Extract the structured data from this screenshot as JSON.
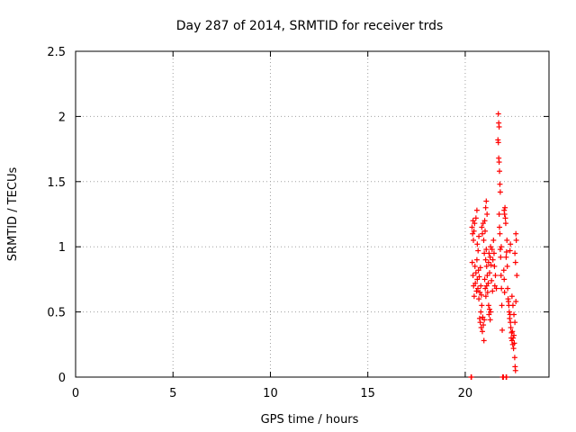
{
  "chart_data": {
    "type": "scatter",
    "title": "Day 287 of 2014, SRMTID for receiver trds",
    "xlabel": "GPS time / hours",
    "ylabel": "SRMTID / TECUs",
    "xlim": [
      0,
      24.3
    ],
    "ylim": [
      0,
      2.5
    ],
    "xticks": [
      0,
      5,
      10,
      15,
      20
    ],
    "yticks": [
      0,
      0.5,
      1,
      1.5,
      2,
      2.5
    ],
    "xtick_labels": [
      "0",
      "5",
      "10",
      "15",
      "20"
    ],
    "ytick_labels": [
      "0",
      "0.5",
      "1",
      "1.5",
      "2",
      "2.5"
    ],
    "grid": true,
    "marker": "+",
    "series": [
      {
        "name": "SRMTID",
        "color": "#ff0000",
        "points": [
          [
            20.3,
            0.0
          ],
          [
            20.32,
            0.0
          ],
          [
            20.35,
            1.15
          ],
          [
            20.38,
            1.1
          ],
          [
            20.4,
            1.2
          ],
          [
            20.42,
            1.05
          ],
          [
            20.45,
            1.12
          ],
          [
            20.48,
            1.18
          ],
          [
            20.36,
            0.88
          ],
          [
            20.4,
            0.78
          ],
          [
            20.43,
            0.7
          ],
          [
            20.46,
            0.62
          ],
          [
            20.5,
            0.85
          ],
          [
            20.52,
            0.72
          ],
          [
            20.55,
            0.8
          ],
          [
            20.58,
            0.66
          ],
          [
            20.6,
            0.9
          ],
          [
            20.62,
            0.75
          ],
          [
            20.65,
            0.68
          ],
          [
            20.68,
            0.82
          ],
          [
            20.7,
            0.6
          ],
          [
            20.72,
            0.77
          ],
          [
            20.75,
            0.65
          ],
          [
            20.78,
            0.84
          ],
          [
            20.8,
            0.7
          ],
          [
            20.83,
            0.63
          ],
          [
            20.55,
            1.22
          ],
          [
            20.6,
            1.28
          ],
          [
            20.62,
            1.02
          ],
          [
            20.66,
            0.97
          ],
          [
            20.7,
            1.08
          ],
          [
            20.74,
            0.45
          ],
          [
            20.77,
            0.42
          ],
          [
            20.8,
            0.5
          ],
          [
            20.82,
            0.38
          ],
          [
            20.85,
            0.55
          ],
          [
            20.88,
            0.35
          ],
          [
            20.9,
            0.46
          ],
          [
            20.93,
            0.4
          ],
          [
            20.96,
            0.28
          ],
          [
            20.98,
            0.44
          ],
          [
            20.85,
            1.15
          ],
          [
            20.88,
            1.1
          ],
          [
            20.92,
            1.18
          ],
          [
            20.95,
            1.05
          ],
          [
            20.98,
            0.95
          ],
          [
            21.0,
            1.2
          ],
          [
            21.02,
            1.12
          ],
          [
            21.05,
            0.9
          ],
          [
            21.08,
            0.98
          ],
          [
            21.1,
            0.85
          ],
          [
            21.05,
            1.3
          ],
          [
            21.08,
            1.35
          ],
          [
            21.12,
            1.25
          ],
          [
            21.0,
            0.75
          ],
          [
            21.03,
            0.68
          ],
          [
            21.06,
            0.62
          ],
          [
            21.1,
            0.7
          ],
          [
            21.13,
            0.78
          ],
          [
            21.15,
            0.65
          ],
          [
            21.18,
            0.72
          ],
          [
            21.2,
            0.88
          ],
          [
            21.22,
            0.95
          ],
          [
            21.25,
            0.8
          ],
          [
            21.28,
            0.92
          ],
          [
            21.3,
            1.0
          ],
          [
            21.32,
            0.86
          ],
          [
            21.35,
            0.74
          ],
          [
            21.38,
            0.98
          ],
          [
            21.2,
            0.55
          ],
          [
            21.22,
            0.48
          ],
          [
            21.25,
            0.52
          ],
          [
            21.28,
            0.44
          ],
          [
            21.3,
            0.5
          ],
          [
            21.4,
            0.66
          ],
          [
            21.42,
            0.9
          ],
          [
            21.45,
            1.05
          ],
          [
            21.48,
            0.95
          ],
          [
            21.5,
            0.85
          ],
          [
            21.52,
            0.7
          ],
          [
            21.55,
            0.78
          ],
          [
            21.6,
            0.68
          ],
          [
            21.7,
            2.02
          ],
          [
            21.72,
            1.95
          ],
          [
            21.74,
            1.92
          ],
          [
            21.68,
            1.82
          ],
          [
            21.7,
            1.8
          ],
          [
            21.72,
            1.68
          ],
          [
            21.74,
            1.65
          ],
          [
            21.76,
            1.58
          ],
          [
            21.78,
            1.48
          ],
          [
            21.8,
            1.42
          ],
          [
            21.74,
            1.25
          ],
          [
            21.76,
            1.15
          ],
          [
            21.78,
            1.1
          ],
          [
            21.8,
            0.98
          ],
          [
            21.82,
            0.92
          ],
          [
            21.85,
            1.0
          ],
          [
            21.84,
            0.78
          ],
          [
            21.86,
            0.68
          ],
          [
            21.88,
            0.55
          ],
          [
            21.9,
            0.36
          ],
          [
            21.92,
            0.0
          ],
          [
            21.96,
            0.0
          ],
          [
            22.1,
            0.0
          ],
          [
            22.12,
            0.0
          ],
          [
            22.0,
            1.28
          ],
          [
            22.02,
            1.25
          ],
          [
            22.04,
            1.3
          ],
          [
            22.06,
            1.22
          ],
          [
            22.08,
            1.18
          ],
          [
            21.98,
            0.82
          ],
          [
            22.0,
            0.75
          ],
          [
            22.02,
            0.65
          ],
          [
            22.1,
            0.92
          ],
          [
            22.12,
            0.96
          ],
          [
            22.14,
            1.05
          ],
          [
            22.16,
            0.85
          ],
          [
            22.18,
            0.68
          ],
          [
            22.2,
            0.6
          ],
          [
            22.22,
            0.58
          ],
          [
            22.24,
            0.55
          ],
          [
            22.26,
            0.5
          ],
          [
            22.28,
            0.45
          ],
          [
            22.3,
            0.48
          ],
          [
            22.32,
            0.42
          ],
          [
            22.34,
            0.38
          ],
          [
            22.36,
            0.3
          ],
          [
            22.38,
            0.34
          ],
          [
            22.4,
            0.28
          ],
          [
            22.42,
            0.35
          ],
          [
            22.44,
            0.25
          ],
          [
            22.46,
            0.3
          ],
          [
            22.48,
            0.22
          ],
          [
            22.5,
            0.32
          ],
          [
            22.52,
            0.26
          ],
          [
            22.54,
            0.15
          ],
          [
            22.56,
            0.08
          ],
          [
            22.58,
            0.05
          ],
          [
            22.4,
            0.62
          ],
          [
            22.45,
            0.55
          ],
          [
            22.5,
            0.48
          ],
          [
            22.55,
            0.42
          ],
          [
            22.6,
            0.58
          ],
          [
            22.55,
            0.95
          ],
          [
            22.58,
            0.88
          ],
          [
            22.6,
            1.1
          ],
          [
            22.62,
            1.05
          ],
          [
            22.65,
            0.78
          ],
          [
            22.3,
            0.97
          ],
          [
            22.32,
            1.02
          ]
        ]
      }
    ]
  }
}
